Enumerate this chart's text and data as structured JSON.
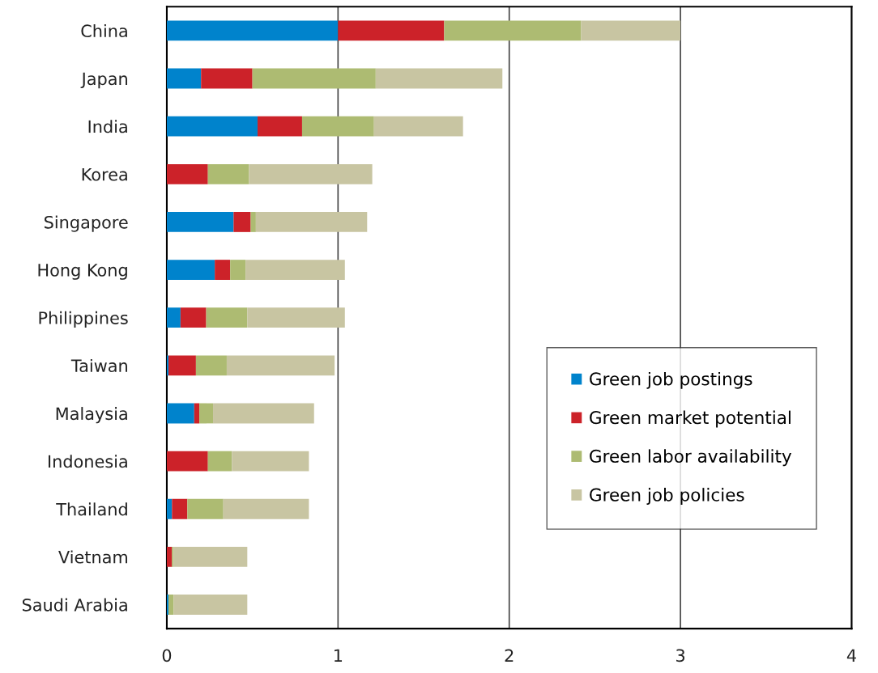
{
  "chart_data": {
    "type": "bar",
    "orientation": "horizontal",
    "stacked": true,
    "categories": [
      "China",
      "Japan",
      "India",
      "Korea",
      "Singapore",
      "Hong Kong",
      "Philippines",
      "Taiwan",
      "Malaysia",
      "Indonesia",
      "Thailand",
      "Vietnam",
      "Saudi Arabia"
    ],
    "series": [
      {
        "name": "Green job postings",
        "color": "#0083cc",
        "values": [
          1.0,
          0.2,
          0.53,
          0,
          0.39,
          0.28,
          0.08,
          0.01,
          0.16,
          0,
          0.03,
          0,
          0.01
        ]
      },
      {
        "name": "Green market potential",
        "color": "#cc2229",
        "values": [
          0.62,
          0.3,
          0.26,
          0.24,
          0.1,
          0.09,
          0.15,
          0.16,
          0.03,
          0.24,
          0.09,
          0.03,
          0
        ]
      },
      {
        "name": "Green labor availability",
        "color": "#adbb72",
        "values": [
          0.8,
          0.72,
          0.42,
          0.24,
          0.03,
          0.09,
          0.24,
          0.18,
          0.08,
          0.14,
          0.21,
          0.01,
          0.03
        ]
      },
      {
        "name": "Green job policies",
        "color": "#c8c5a2",
        "values": [
          0.58,
          0.74,
          0.52,
          0.72,
          0.65,
          0.58,
          0.57,
          0.63,
          0.59,
          0.45,
          0.5,
          0.43,
          0.43
        ]
      }
    ],
    "xlim": [
      0,
      4
    ],
    "xticks": [
      0,
      1,
      2,
      3,
      4
    ],
    "grid": "x",
    "legend": "bottom right"
  }
}
